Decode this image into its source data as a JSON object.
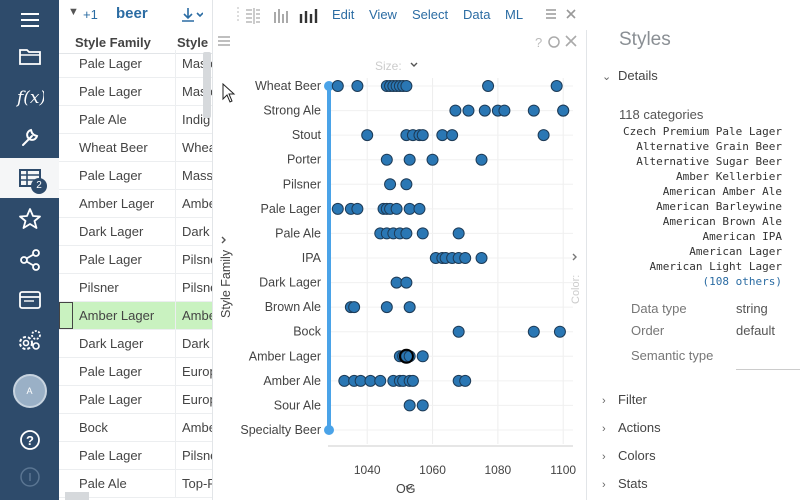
{
  "grid": {
    "expand_label": "+1",
    "table_name": "beer",
    "columns": [
      "Style Family",
      "Style Name"
    ],
    "rows": [
      [
        "Pale Lager",
        "Maste"
      ],
      [
        "Pale Lager",
        "Maste"
      ],
      [
        "Pale Ale",
        "Indig"
      ],
      [
        "Wheat Beer",
        "Wheat"
      ],
      [
        "Pale Lager",
        "Masso"
      ],
      [
        "Amber Lager",
        "Ambe"
      ],
      [
        "Dark Lager",
        "Dark"
      ],
      [
        "Pale Lager",
        "Pilsne"
      ],
      [
        "Pilsner",
        "Pilsne"
      ],
      [
        "Amber Lager",
        "Ambe"
      ],
      [
        "Dark Lager",
        "Dark"
      ],
      [
        "Pale Lager",
        "Europ"
      ],
      [
        "Pale Lager",
        "Europ"
      ],
      [
        "Bock",
        "Ambe"
      ],
      [
        "Pale Lager",
        "Pilsne"
      ],
      [
        "Pale Ale",
        "Top-F"
      ]
    ],
    "selected_row_index": 9
  },
  "toolbar": {
    "menus": [
      "Edit",
      "View",
      "Select",
      "Data",
      "ML"
    ]
  },
  "viewer": {
    "size_label": "Size:",
    "color_label": "Color:",
    "x_axis_label": "OG",
    "y_axis_label": "Style Family"
  },
  "chart_data": {
    "type": "scatter",
    "xlabel": "OG",
    "ylabel": "Style Family",
    "xlim": [
      1028,
      1103
    ],
    "xticks": [
      1040,
      1060,
      1080,
      1100
    ],
    "categories": [
      "Wheat Beer",
      "Strong Ale",
      "Stout",
      "Porter",
      "Pilsner",
      "Pale Lager",
      "Pale Ale",
      "IPA",
      "Dark Lager",
      "Brown Ale",
      "Bock",
      "Amber Lager",
      "Amber Ale",
      "Sour Ale",
      "Specialty Beer"
    ],
    "points": {
      "Wheat Beer": [
        1031,
        1037,
        1046,
        1047,
        1048,
        1049,
        1050,
        1051,
        1052,
        1077,
        1098
      ],
      "Strong Ale": [
        1067,
        1071,
        1076,
        1080,
        1082,
        1091,
        1100,
        1100
      ],
      "Stout": [
        1040,
        1052,
        1054,
        1056,
        1057,
        1063,
        1066,
        1094
      ],
      "Porter": [
        1046,
        1053,
        1060,
        1075
      ],
      "Pilsner": [
        1047,
        1052
      ],
      "Pale Lager": [
        1031,
        1035,
        1037,
        1045,
        1046,
        1047,
        1049,
        1053,
        1056
      ],
      "Pale Ale": [
        1044,
        1046,
        1048,
        1050,
        1052,
        1057,
        1068
      ],
      "IPA": [
        1061,
        1063,
        1064,
        1066,
        1068,
        1070,
        1075
      ],
      "Dark Lager": [
        1049,
        1052
      ],
      "Brown Ale": [
        1035,
        1036,
        1046,
        1053
      ],
      "Bock": [
        1068,
        1091,
        1099
      ],
      "Amber Lager": [
        1050,
        1051,
        1052,
        1053,
        1057
      ],
      "Amber Ale": [
        1033,
        1036,
        1038,
        1041,
        1044,
        1048,
        1050,
        1051,
        1053,
        1054,
        1068,
        1070
      ],
      "Sour Ale": [
        1053,
        1057
      ],
      "Specialty Beer": []
    },
    "grid": true,
    "marker_color": "#2a77b4"
  },
  "styles": {
    "title": "Styles",
    "details_label": "Details",
    "category_count": "118 categories",
    "categories": [
      "Czech Premium Pale Lager",
      "Alternative Grain Beer",
      "Alternative Sugar Beer",
      "Amber Kellerbier",
      "American Amber Ale",
      "American Barleywine",
      "American Brown Ale",
      "American IPA",
      "American Lager",
      "American Light Lager"
    ],
    "others": "(108 others)",
    "props": [
      {
        "label": "Data type",
        "value": "string"
      },
      {
        "label": "Order",
        "value": "default"
      },
      {
        "label": "Semantic type",
        "value": ""
      }
    ],
    "sections": [
      "Filter",
      "Actions",
      "Colors",
      "Stats"
    ]
  },
  "colors": {
    "nav_bg": "#2e4b6b",
    "accent": "#2b6ca3",
    "selected_row": "#c9f2c0",
    "range_slider": "#4aa3e8"
  }
}
